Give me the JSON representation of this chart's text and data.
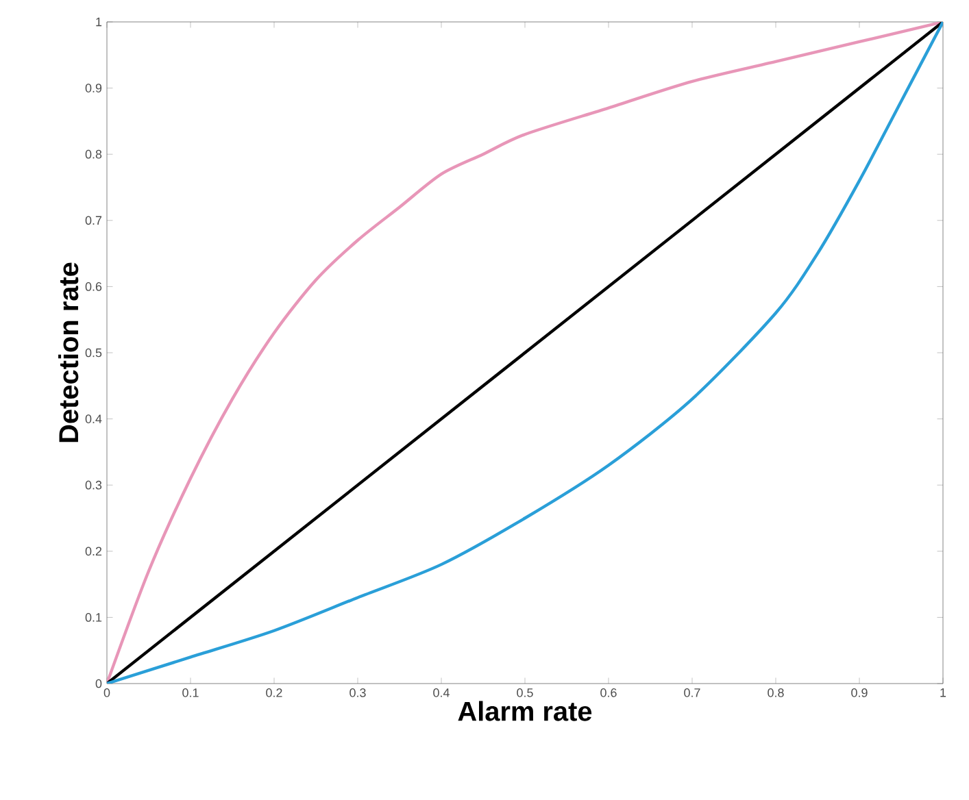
{
  "chart_data": {
    "type": "line",
    "xlabel": "Alarm rate",
    "ylabel": "Detection rate",
    "xlim": [
      0,
      1
    ],
    "ylim": [
      0,
      1
    ],
    "xticks": [
      0,
      0.1,
      0.2,
      0.3,
      0.4,
      0.5,
      0.6,
      0.7,
      0.8,
      0.9,
      1
    ],
    "yticks": [
      0,
      0.1,
      0.2,
      0.3,
      0.4,
      0.5,
      0.6,
      0.7,
      0.8,
      0.9,
      1
    ],
    "grid": false,
    "marker": "none",
    "line_style": "solid",
    "series": [
      {
        "color": "#e896b8",
        "x": [
          0,
          0.05,
          0.1,
          0.15,
          0.2,
          0.25,
          0.3,
          0.35,
          0.4,
          0.45,
          0.5,
          0.6,
          0.7,
          0.8,
          0.9,
          1
        ],
        "values": [
          0,
          0.17,
          0.31,
          0.43,
          0.53,
          0.61,
          0.67,
          0.72,
          0.77,
          0.8,
          0.83,
          0.87,
          0.91,
          0.94,
          0.97,
          1
        ]
      },
      {
        "color": "#000000",
        "x": [
          0,
          1
        ],
        "values": [
          0,
          1
        ]
      },
      {
        "color": "#2a9fd8",
        "x": [
          0,
          0.1,
          0.2,
          0.3,
          0.4,
          0.5,
          0.6,
          0.7,
          0.8,
          0.85,
          0.9,
          0.95,
          1
        ],
        "values": [
          0,
          0.04,
          0.08,
          0.13,
          0.18,
          0.25,
          0.33,
          0.43,
          0.56,
          0.65,
          0.76,
          0.88,
          1
        ]
      }
    ]
  }
}
